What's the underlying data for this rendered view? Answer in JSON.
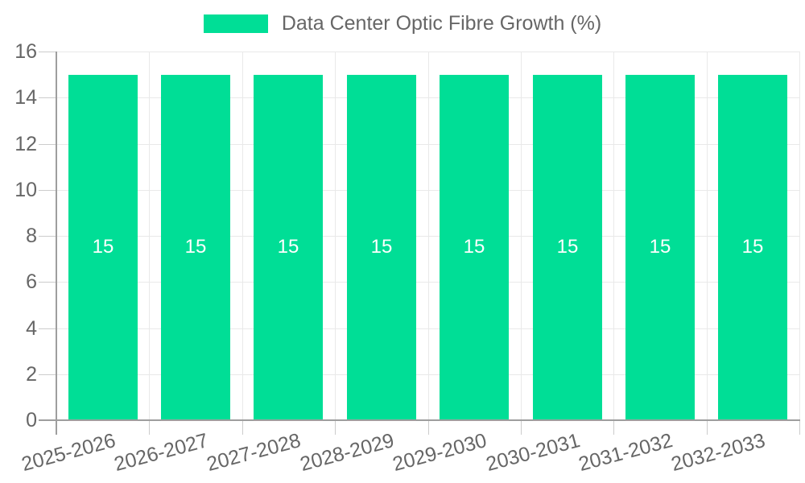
{
  "legend": {
    "label": "Data Center Optic Fibre Growth (%)"
  },
  "chart_data": {
    "type": "bar",
    "title": "Data Center Optic Fibre Growth (%)",
    "categories": [
      "2025-2026",
      "2026-2027",
      "2027-2028",
      "2028-2029",
      "2029-2030",
      "2030-2031",
      "2031-2032",
      "2032-2033"
    ],
    "values": [
      15,
      15,
      15,
      15,
      15,
      15,
      15,
      15
    ],
    "data_labels": [
      "15",
      "15",
      "15",
      "15",
      "15",
      "15",
      "15",
      "15"
    ],
    "series_name": "Data Center Optic Fibre Growth (%)",
    "yticks": [
      0,
      2,
      4,
      6,
      8,
      10,
      12,
      14,
      16
    ],
    "ylim": [
      0,
      16
    ],
    "xlabel": "",
    "ylabel": "",
    "legend_position": "top",
    "grid": true,
    "colors": {
      "bar": "#00DE96",
      "axis_line": "#9e9e9e",
      "grid_line": "#e9e9e9",
      "tick_mark": "#cccccc",
      "tick_text": "#666666",
      "bar_label_text": "#ffffff",
      "background": "#ffffff"
    }
  }
}
